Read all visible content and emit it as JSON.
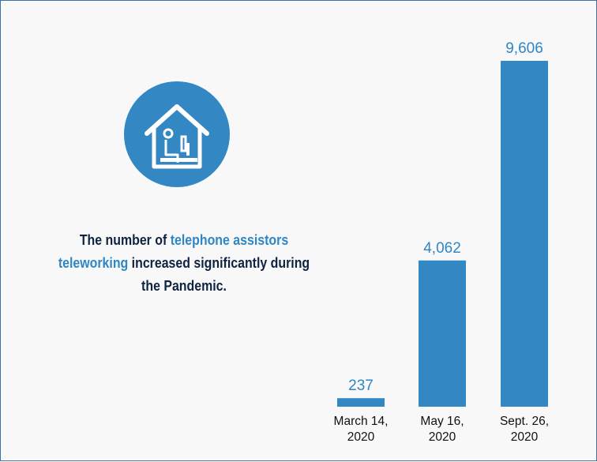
{
  "caption": {
    "part1": "The number of",
    "highlight": "telephone assistors teleworking",
    "part2": "increased significantly during the Pandemic."
  },
  "icons": {
    "main": "house-with-person-at-computer-icon"
  },
  "colors": {
    "bar": "#3387c3",
    "value_label": "#2f86c4",
    "caption_text": "#0f2340",
    "caption_highlight": "#2f86c4",
    "icon_circle": "#3387c3",
    "border": "#3f6faa",
    "background": "#f8f8f8"
  },
  "chart_data": {
    "type": "bar",
    "categories": [
      [
        "March 14,",
        "2020"
      ],
      [
        "May 16,",
        "2020"
      ],
      [
        "Sept. 26,",
        "2020"
      ]
    ],
    "values": [
      237,
      4062,
      9606
    ],
    "value_labels": [
      "237",
      "4,062",
      "9,606"
    ],
    "ylim": [
      0,
      9606
    ],
    "grid": false,
    "legend": "none"
  }
}
